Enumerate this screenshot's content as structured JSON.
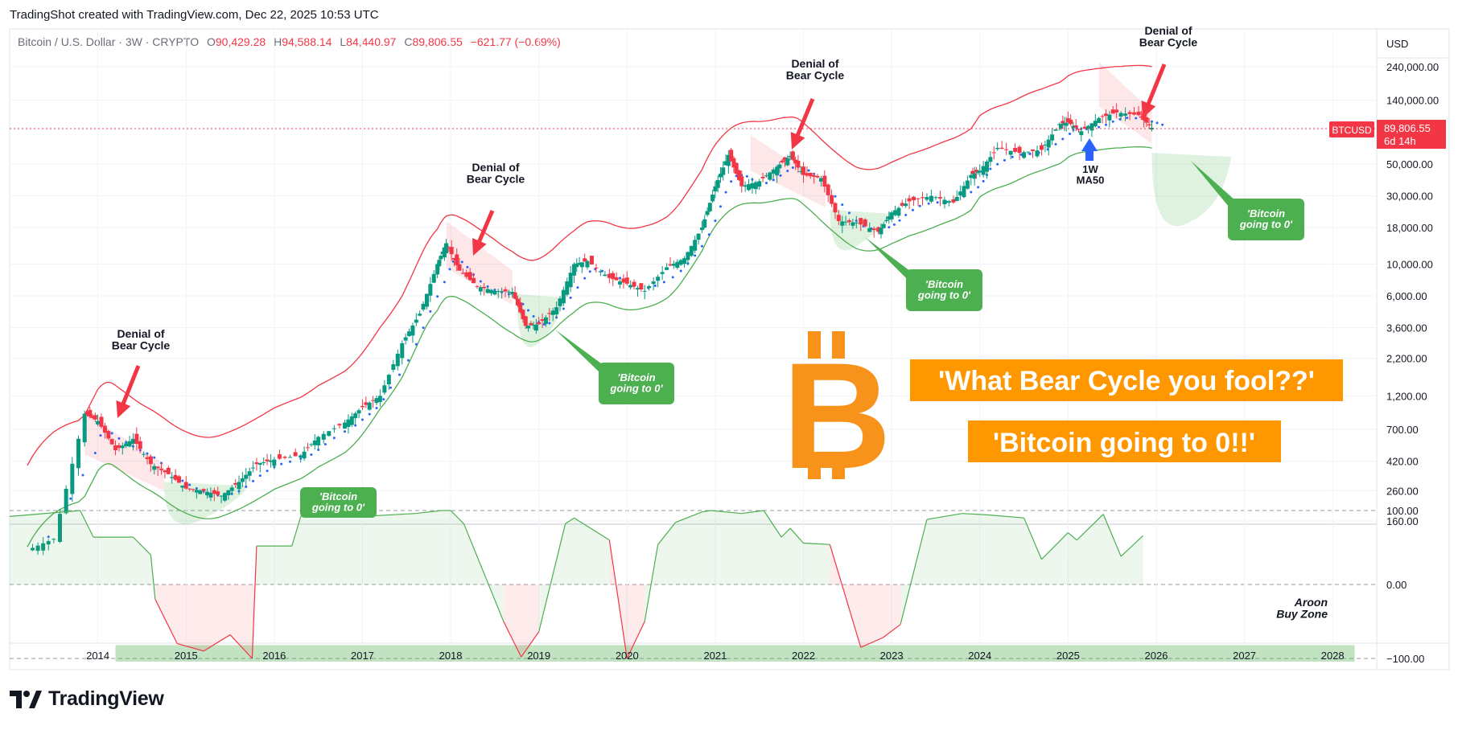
{
  "header": {
    "created_by": "TradingShot created with TradingView.com, Dec 22, 2025 10:53 UTC"
  },
  "legend": {
    "symbol": "Bitcoin / U.S. Dollar · 3W · CRYPTO",
    "o_label": "O",
    "o_value": "90,429.28",
    "h_label": "H",
    "h_value": "94,588.14",
    "l_label": "L",
    "l_value": "84,440.97",
    "c_label": "C",
    "c_value": "89,806.55",
    "change": "−621.77 (−0.69%)"
  },
  "price_axis": {
    "currency": "USD",
    "ticks": [
      {
        "label": "240,000.00",
        "value": 240000
      },
      {
        "label": "140,000.00",
        "value": 140000
      },
      {
        "label": "50,000.00",
        "value": 50000
      },
      {
        "label": "30,000.00",
        "value": 30000
      },
      {
        "label": "18,000.00",
        "value": 18000
      },
      {
        "label": "10,000.00",
        "value": 10000
      },
      {
        "label": "6,000.00",
        "value": 6000
      },
      {
        "label": "3,600.00",
        "value": 3600
      },
      {
        "label": "2,200.00",
        "value": 2200
      },
      {
        "label": "1,200.00",
        "value": 1200
      },
      {
        "label": "700.00",
        "value": 700
      },
      {
        "label": "420.00",
        "value": 420
      },
      {
        "label": "260.00",
        "value": 260
      },
      {
        "label": "160.00",
        "value": 160
      }
    ],
    "last_symbol": "BTCUSD",
    "last_price": "89,806.55",
    "last_countdown": "6d 14h"
  },
  "aroon_axis": {
    "ticks": [
      {
        "label": "100.00",
        "value": 100
      },
      {
        "label": "0.00",
        "value": 0
      },
      {
        "label": "−100.00",
        "value": -100
      }
    ]
  },
  "time_axis": [
    "2014",
    "2015",
    "2016",
    "2017",
    "2018",
    "2019",
    "2020",
    "2021",
    "2022",
    "2023",
    "2024",
    "2025",
    "2026",
    "2027",
    "2028"
  ],
  "annotations": {
    "denial": "Denial of\nBear Cycle",
    "bitcoin_zero_small": "'Bitcoin\ngoing to 0'",
    "ma_label": "1W\nMA50",
    "aroon_zone": "Aroon\nBuy Zone",
    "bitcoin_symbol": "B",
    "banner_1": "'What Bear Cycle you fool??'",
    "banner_2": "'Bitcoin going to 0!!'"
  },
  "branding": {
    "logo_text": "TradingView"
  },
  "colors": {
    "up": "#089981",
    "down": "#f23645",
    "upper_band": "#f23645",
    "lower_band": "#4caf50",
    "ma50": "#2962ff",
    "orange": "#f7931a",
    "banner_bg": "#ff9800",
    "green_box": "#4caf50"
  },
  "chart_data": [
    {
      "type": "candlestick",
      "title": "Bitcoin / U.S. Dollar · 3W · CRYPTO",
      "y_scale": "log",
      "x_range": [
        2013.0,
        2028.5
      ],
      "ylim": [
        160,
        320000
      ],
      "ohlc_close_series": {
        "x": [
          2013.2,
          2013.5,
          2013.85,
          2014.0,
          2014.2,
          2014.4,
          2014.6,
          2014.8,
          2015.0,
          2015.2,
          2015.4,
          2015.6,
          2015.8,
          2016.0,
          2016.3,
          2016.5,
          2016.8,
          2017.0,
          2017.2,
          2017.45,
          2017.65,
          2017.85,
          2017.95,
          2018.1,
          2018.3,
          2018.5,
          2018.7,
          2018.85,
          2019.0,
          2019.2,
          2019.4,
          2019.55,
          2019.8,
          2020.0,
          2020.2,
          2020.45,
          2020.65,
          2020.85,
          2021.0,
          2021.15,
          2021.3,
          2021.5,
          2021.7,
          2021.85,
          2022.0,
          2022.2,
          2022.4,
          2022.6,
          2022.85,
          2023.0,
          2023.2,
          2023.45,
          2023.7,
          2023.9,
          2024.0,
          2024.2,
          2024.45,
          2024.7,
          2024.9,
          2025.0,
          2025.15,
          2025.35,
          2025.55,
          2025.8,
          2025.95
        ],
        "close": [
          100,
          120,
          900,
          800,
          500,
          600,
          400,
          340,
          270,
          260,
          240,
          300,
          400,
          430,
          460,
          620,
          780,
          1000,
          1200,
          2800,
          4500,
          10000,
          14000,
          9000,
          7000,
          6500,
          6400,
          3700,
          3800,
          5000,
          10000,
          10500,
          8000,
          7300,
          6500,
          9500,
          11000,
          18000,
          35000,
          58000,
          35000,
          38000,
          48000,
          57000,
          42000,
          40000,
          20000,
          19500,
          16800,
          23000,
          27500,
          30000,
          27000,
          42000,
          45000,
          65000,
          60000,
          63000,
          95000,
          98000,
          85000,
          105000,
          115000,
          110000,
          89806.55
        ]
      }
    },
    {
      "type": "line",
      "title": "Aroon",
      "ylim": [
        -100,
        100
      ],
      "reference_lines": [
        100,
        0,
        -100
      ],
      "series": [
        {
          "x": [
            2013.0,
            2013.8,
            2013.95,
            2014.4,
            2014.6,
            2014.65,
            2014.9,
            2015.2,
            2015.5,
            2015.75,
            2015.8,
            2016.2,
            2016.3,
            2016.9,
            2017.0,
            2017.6,
            2017.9,
            2018.0,
            2018.15,
            2018.6,
            2018.8,
            2019.0,
            2019.3,
            2019.4,
            2019.8,
            2020.0,
            2020.2,
            2020.35,
            2020.55,
            2020.85,
            2020.95,
            2021.3,
            2021.55,
            2021.75,
            2021.85,
            2022.0,
            2022.3,
            2022.65,
            2022.9,
            2023.1,
            2023.4,
            2023.8,
            2024.1,
            2024.5,
            2024.7,
            2025.0,
            2025.1,
            2025.4,
            2025.6,
            2025.85
          ],
          "y": [
            92,
            100,
            64,
            64,
            40,
            -20,
            -80,
            -90,
            -68,
            -100,
            52,
            52,
            92,
            100,
            92,
            96,
            100,
            100,
            82,
            -50,
            -98,
            -64,
            82,
            90,
            60,
            -100,
            -50,
            54,
            84,
            98,
            100,
            96,
            100,
            64,
            76,
            56,
            54,
            -85,
            -72,
            -54,
            88,
            96,
            94,
            90,
            34,
            70,
            60,
            95,
            38,
            66
          ],
          "up_color": "#4caf50",
          "down_color": "#f23645"
        }
      ],
      "annotation": "Aroon Buy Zone"
    }
  ]
}
